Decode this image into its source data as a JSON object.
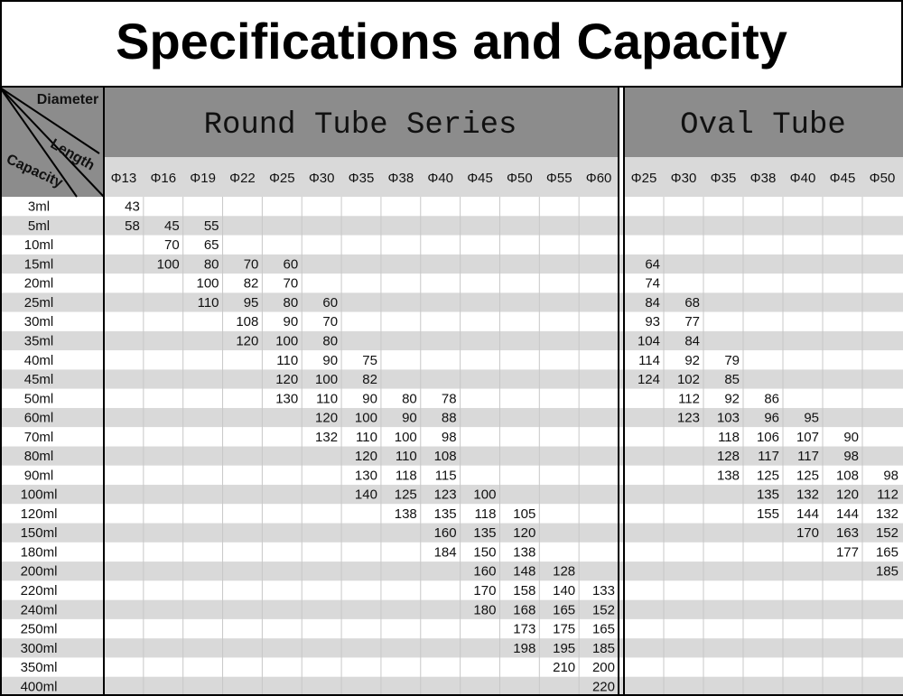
{
  "title": "Specifications and Capacity",
  "corner": {
    "diameter": "Diameter",
    "length": "Length",
    "capacity": "Capacity"
  },
  "round": {
    "title": "Round Tube Series",
    "diameters": [
      "Φ13",
      "Φ16",
      "Φ19",
      "Φ22",
      "Φ25",
      "Φ30",
      "Φ35",
      "Φ38",
      "Φ40",
      "Φ45",
      "Φ50",
      "Φ55",
      "Φ60"
    ]
  },
  "oval": {
    "title": "Oval Tube",
    "diameters": [
      "Φ25",
      "Φ30",
      "Φ35",
      "Φ38",
      "Φ40",
      "Φ45",
      "Φ50"
    ]
  },
  "rows": [
    {
      "capacity": "3ml",
      "round": [
        43,
        null,
        null,
        null,
        null,
        null,
        null,
        null,
        null,
        null,
        null,
        null,
        null
      ],
      "oval": [
        null,
        null,
        null,
        null,
        null,
        null,
        null
      ]
    },
    {
      "capacity": "5ml",
      "round": [
        58,
        45,
        55,
        null,
        null,
        null,
        null,
        null,
        null,
        null,
        null,
        null,
        null
      ],
      "oval": [
        null,
        null,
        null,
        null,
        null,
        null,
        null
      ]
    },
    {
      "capacity": "10ml",
      "round": [
        null,
        70,
        65,
        null,
        null,
        null,
        null,
        null,
        null,
        null,
        null,
        null,
        null
      ],
      "oval": [
        null,
        null,
        null,
        null,
        null,
        null,
        null
      ]
    },
    {
      "capacity": "15ml",
      "round": [
        null,
        100,
        80,
        70,
        60,
        null,
        null,
        null,
        null,
        null,
        null,
        null,
        null
      ],
      "oval": [
        64,
        null,
        null,
        null,
        null,
        null,
        null
      ]
    },
    {
      "capacity": "20ml",
      "round": [
        null,
        null,
        100,
        82,
        70,
        null,
        null,
        null,
        null,
        null,
        null,
        null,
        null
      ],
      "oval": [
        74,
        null,
        null,
        null,
        null,
        null,
        null
      ]
    },
    {
      "capacity": "25ml",
      "round": [
        null,
        null,
        110,
        95,
        80,
        60,
        null,
        null,
        null,
        null,
        null,
        null,
        null
      ],
      "oval": [
        84,
        68,
        null,
        null,
        null,
        null,
        null
      ]
    },
    {
      "capacity": "30ml",
      "round": [
        null,
        null,
        null,
        108,
        90,
        70,
        null,
        null,
        null,
        null,
        null,
        null,
        null
      ],
      "oval": [
        93,
        77,
        null,
        null,
        null,
        null,
        null
      ]
    },
    {
      "capacity": "35ml",
      "round": [
        null,
        null,
        null,
        120,
        100,
        80,
        null,
        null,
        null,
        null,
        null,
        null,
        null
      ],
      "oval": [
        104,
        84,
        null,
        null,
        null,
        null,
        null
      ]
    },
    {
      "capacity": "40ml",
      "round": [
        null,
        null,
        null,
        null,
        110,
        90,
        75,
        null,
        null,
        null,
        null,
        null,
        null
      ],
      "oval": [
        114,
        92,
        79,
        null,
        null,
        null,
        null
      ]
    },
    {
      "capacity": "45ml",
      "round": [
        null,
        null,
        null,
        null,
        120,
        100,
        82,
        null,
        null,
        null,
        null,
        null,
        null
      ],
      "oval": [
        124,
        102,
        85,
        null,
        null,
        null,
        null
      ]
    },
    {
      "capacity": "50ml",
      "round": [
        null,
        null,
        null,
        null,
        130,
        110,
        90,
        80,
        78,
        null,
        null,
        null,
        null
      ],
      "oval": [
        null,
        112,
        92,
        86,
        null,
        null,
        null
      ]
    },
    {
      "capacity": "60ml",
      "round": [
        null,
        null,
        null,
        null,
        null,
        120,
        100,
        90,
        88,
        null,
        null,
        null,
        null
      ],
      "oval": [
        null,
        123,
        103,
        96,
        95,
        null,
        null
      ]
    },
    {
      "capacity": "70ml",
      "round": [
        null,
        null,
        null,
        null,
        null,
        132,
        110,
        100,
        98,
        null,
        null,
        null,
        null
      ],
      "oval": [
        null,
        null,
        118,
        106,
        107,
        90,
        null
      ]
    },
    {
      "capacity": "80ml",
      "round": [
        null,
        null,
        null,
        null,
        null,
        null,
        120,
        110,
        108,
        null,
        null,
        null,
        null
      ],
      "oval": [
        null,
        null,
        128,
        117,
        117,
        98,
        null
      ]
    },
    {
      "capacity": "90ml",
      "round": [
        null,
        null,
        null,
        null,
        null,
        null,
        130,
        118,
        115,
        null,
        null,
        null,
        null
      ],
      "oval": [
        null,
        null,
        138,
        125,
        125,
        108,
        98
      ]
    },
    {
      "capacity": "100ml",
      "round": [
        null,
        null,
        null,
        null,
        null,
        null,
        140,
        125,
        123,
        100,
        null,
        null,
        null
      ],
      "oval": [
        null,
        null,
        null,
        135,
        132,
        120,
        112
      ]
    },
    {
      "capacity": "120ml",
      "round": [
        null,
        null,
        null,
        null,
        null,
        null,
        null,
        138,
        135,
        118,
        105,
        null,
        null
      ],
      "oval": [
        null,
        null,
        null,
        155,
        144,
        144,
        132
      ]
    },
    {
      "capacity": "150ml",
      "round": [
        null,
        null,
        null,
        null,
        null,
        null,
        null,
        null,
        160,
        135,
        120,
        null,
        null
      ],
      "oval": [
        null,
        null,
        null,
        null,
        170,
        163,
        152
      ]
    },
    {
      "capacity": "180ml",
      "round": [
        null,
        null,
        null,
        null,
        null,
        null,
        null,
        null,
        184,
        150,
        138,
        null,
        null
      ],
      "oval": [
        null,
        null,
        null,
        null,
        null,
        177,
        165
      ]
    },
    {
      "capacity": "200ml",
      "round": [
        null,
        null,
        null,
        null,
        null,
        null,
        null,
        null,
        null,
        160,
        148,
        128,
        null
      ],
      "oval": [
        null,
        null,
        null,
        null,
        null,
        null,
        185
      ]
    },
    {
      "capacity": "220ml",
      "round": [
        null,
        null,
        null,
        null,
        null,
        null,
        null,
        null,
        null,
        170,
        158,
        140,
        133
      ],
      "oval": [
        null,
        null,
        null,
        null,
        null,
        null,
        null
      ]
    },
    {
      "capacity": "240ml",
      "round": [
        null,
        null,
        null,
        null,
        null,
        null,
        null,
        null,
        null,
        180,
        168,
        165,
        152
      ],
      "oval": [
        null,
        null,
        null,
        null,
        null,
        null,
        null
      ]
    },
    {
      "capacity": "250ml",
      "round": [
        null,
        null,
        null,
        null,
        null,
        null,
        null,
        null,
        null,
        null,
        173,
        175,
        165
      ],
      "oval": [
        null,
        null,
        null,
        null,
        null,
        null,
        null
      ]
    },
    {
      "capacity": "300ml",
      "round": [
        null,
        null,
        null,
        null,
        null,
        null,
        null,
        null,
        null,
        null,
        198,
        195,
        185
      ],
      "oval": [
        null,
        null,
        null,
        null,
        null,
        null,
        null
      ]
    },
    {
      "capacity": "350ml",
      "round": [
        null,
        null,
        null,
        null,
        null,
        null,
        null,
        null,
        null,
        null,
        null,
        210,
        200
      ],
      "oval": [
        null,
        null,
        null,
        null,
        null,
        null,
        null
      ]
    },
    {
      "capacity": "400ml",
      "round": [
        null,
        null,
        null,
        null,
        null,
        null,
        null,
        null,
        null,
        null,
        null,
        null,
        220
      ],
      "oval": [
        null,
        null,
        null,
        null,
        null,
        null,
        null
      ]
    }
  ]
}
